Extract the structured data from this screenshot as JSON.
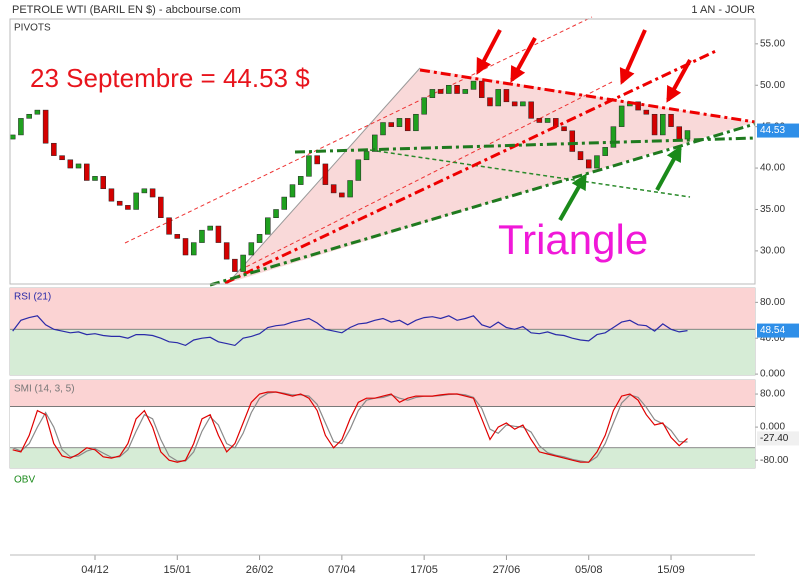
{
  "header": {
    "title": "PETROLE WTI (BARIL EN $) - abcbourse.com",
    "period": "1 AN - JOUR",
    "label": "PIVOTS"
  },
  "annotations": [
    "23 Septembre = 44.53 $",
    "Triangle"
  ],
  "footer": {
    "label": "OBV"
  },
  "chart_data": [
    {
      "type": "candlestick",
      "categories": [
        null,
        null,
        null,
        null,
        null,
        null,
        null,
        null,
        null,
        null,
        "04/12",
        null,
        null,
        null,
        null,
        null,
        null,
        null,
        null,
        null,
        "15/01",
        null,
        null,
        null,
        null,
        null,
        null,
        null,
        null,
        null,
        "26/02",
        null,
        null,
        null,
        null,
        null,
        null,
        null,
        null,
        null,
        "07/04",
        null,
        null,
        null,
        null,
        null,
        null,
        null,
        null,
        null,
        "17/05",
        null,
        null,
        null,
        null,
        null,
        null,
        null,
        null,
        null,
        "27/06",
        null,
        null,
        null,
        null,
        null,
        null,
        null,
        null,
        null,
        "05/08",
        null,
        null,
        null,
        null,
        null,
        null,
        null,
        null,
        null,
        "15/09",
        null,
        null
      ],
      "open": [
        43.5,
        44,
        46,
        46.5,
        47,
        43,
        41.5,
        41,
        40,
        40.5,
        38.5,
        39,
        37.5,
        36,
        35.5,
        35,
        37,
        37.5,
        36.5,
        34,
        32,
        31.5,
        29.5,
        31,
        32.5,
        33,
        31,
        29,
        27.5,
        29.5,
        31,
        32,
        34,
        35,
        36.5,
        38,
        39,
        41.5,
        40.5,
        38,
        37,
        36.5,
        38.5,
        41,
        42,
        44,
        45.5,
        45,
        46,
        44.5,
        46.5,
        48.5,
        49.5,
        49,
        50,
        49,
        49.5,
        50.5,
        48.5,
        47.5,
        49.5,
        48,
        47.5,
        48,
        46,
        45.5,
        46,
        45,
        44.5,
        42,
        41,
        40,
        41.5,
        42.5,
        45,
        47.5,
        48,
        47,
        46.5,
        44,
        46.5,
        45,
        43.5
      ],
      "close": [
        44,
        46,
        46.5,
        47,
        43,
        41.5,
        41,
        40,
        40.5,
        38.5,
        39,
        37.5,
        36,
        35.5,
        35,
        37,
        37.5,
        36.5,
        34,
        32,
        31.5,
        29.5,
        31,
        32.5,
        33,
        31,
        29,
        27.5,
        29.5,
        31,
        32,
        34,
        35,
        36.5,
        38,
        39,
        41.5,
        40.5,
        38,
        37,
        36.5,
        38.5,
        41,
        42,
        44,
        45.5,
        45,
        46,
        44.5,
        46.5,
        48.5,
        49.5,
        49,
        50,
        49,
        49.5,
        50.5,
        48.5,
        47.5,
        49.5,
        48,
        47.5,
        48,
        46,
        45.5,
        46,
        45,
        44.5,
        42,
        41,
        40,
        41.5,
        42.5,
        45,
        47.5,
        48,
        47,
        46.5,
        44,
        46.5,
        45,
        43.5,
        44.53
      ],
      "up_color": "#1fa01f",
      "down_color": "#d40000",
      "last_color": "#2f8fe8",
      "ylim": [
        26,
        58
      ],
      "yticks": [
        {
          "value": 55,
          "label": "55.00"
        },
        {
          "value": 50,
          "label": "50.00"
        },
        {
          "value": 45,
          "label": "45.00"
        },
        {
          "value": 40,
          "label": "40.00"
        },
        {
          "value": 35,
          "label": "35.00"
        },
        {
          "value": 30,
          "label": "30.00"
        }
      ]
    },
    {
      "type": "line",
      "title": "RSI (21)",
      "series": [
        {
          "color": "#2a2aa8",
          "values": [
            48,
            60,
            63,
            65,
            55,
            50,
            48,
            46,
            47,
            44,
            45,
            43,
            42,
            42,
            40,
            44,
            44,
            43,
            40,
            36,
            35,
            32,
            38,
            40,
            41,
            36,
            34,
            32,
            40,
            42,
            45,
            52,
            54,
            55,
            58,
            60,
            62,
            57,
            50,
            48,
            46,
            52,
            56,
            57,
            60,
            62,
            58,
            60,
            55,
            60,
            63,
            64,
            62,
            65,
            60,
            62,
            65,
            55,
            52,
            58,
            52,
            50,
            53,
            46,
            45,
            47,
            44,
            43,
            40,
            38,
            37,
            44,
            46,
            52,
            58,
            60,
            55,
            54,
            48,
            56,
            50,
            47,
            48.54
          ]
        }
      ],
      "ylim": [
        -1,
        96
      ],
      "yticks": [
        {
          "value": 80,
          "label": "80.00"
        },
        {
          "value": 40,
          "label": "40.00"
        },
        {
          "value": 0,
          "label": "0.000"
        }
      ],
      "levels": [
        50
      ],
      "band_colors": [
        "#fbd3d3",
        "#d6ecd6"
      ],
      "last_color": "#2f8fe8"
    },
    {
      "type": "line",
      "title": "SMI (14, 3, 5)",
      "series": [
        {
          "color": "#e00000",
          "values": [
            -55,
            -60,
            -20,
            40,
            30,
            -40,
            -70,
            -75,
            -65,
            -50,
            -55,
            -72,
            -75,
            -70,
            -40,
            20,
            40,
            0,
            -60,
            -80,
            -85,
            -80,
            -40,
            20,
            30,
            -20,
            -60,
            -40,
            10,
            60,
            80,
            85,
            85,
            80,
            75,
            80,
            70,
            40,
            -20,
            -50,
            -30,
            20,
            60,
            70,
            70,
            75,
            80,
            60,
            70,
            75,
            75,
            75,
            78,
            80,
            80,
            75,
            70,
            20,
            -30,
            0,
            10,
            -5,
            5,
            -30,
            -60,
            -65,
            -70,
            -75,
            -80,
            -85,
            -85,
            -60,
            -20,
            40,
            75,
            80,
            65,
            30,
            5,
            10,
            -25,
            -45,
            -27.4
          ],
          "value_labels": {
            "82": "-27.40"
          }
        },
        {
          "color": "#8a8a8a",
          "values": [
            -50,
            -58,
            -40,
            0,
            35,
            0,
            -55,
            -72,
            -70,
            -58,
            -52,
            -63,
            -73,
            -72,
            -55,
            -10,
            30,
            20,
            -30,
            -70,
            -82,
            -82,
            -60,
            -10,
            25,
            5,
            -40,
            -50,
            -15,
            35,
            70,
            82,
            85,
            82,
            78,
            78,
            75,
            55,
            10,
            -35,
            -40,
            -5,
            40,
            65,
            70,
            72,
            78,
            70,
            65,
            72,
            75,
            75,
            76,
            79,
            80,
            78,
            72,
            45,
            -5,
            -15,
            5,
            2,
            0,
            -12,
            -45,
            -62,
            -68,
            -72,
            -78,
            -82,
            -85,
            -72,
            -40,
            10,
            58,
            78,
            72,
            48,
            18,
            8,
            -8,
            -35,
            -36
          ]
        }
      ],
      "ylim": [
        -99,
        114
      ],
      "yticks": [
        {
          "value": 80,
          "label": "80.00"
        },
        {
          "value": 0,
          "label": "0.000"
        },
        {
          "value": -80,
          "label": "-80.00"
        }
      ],
      "levels": [
        50,
        -50
      ],
      "band_colors": [
        "#fbd3d3",
        "#ffffff",
        "#d6ecd6"
      ],
      "last_color": "#f0f0f0"
    }
  ]
}
